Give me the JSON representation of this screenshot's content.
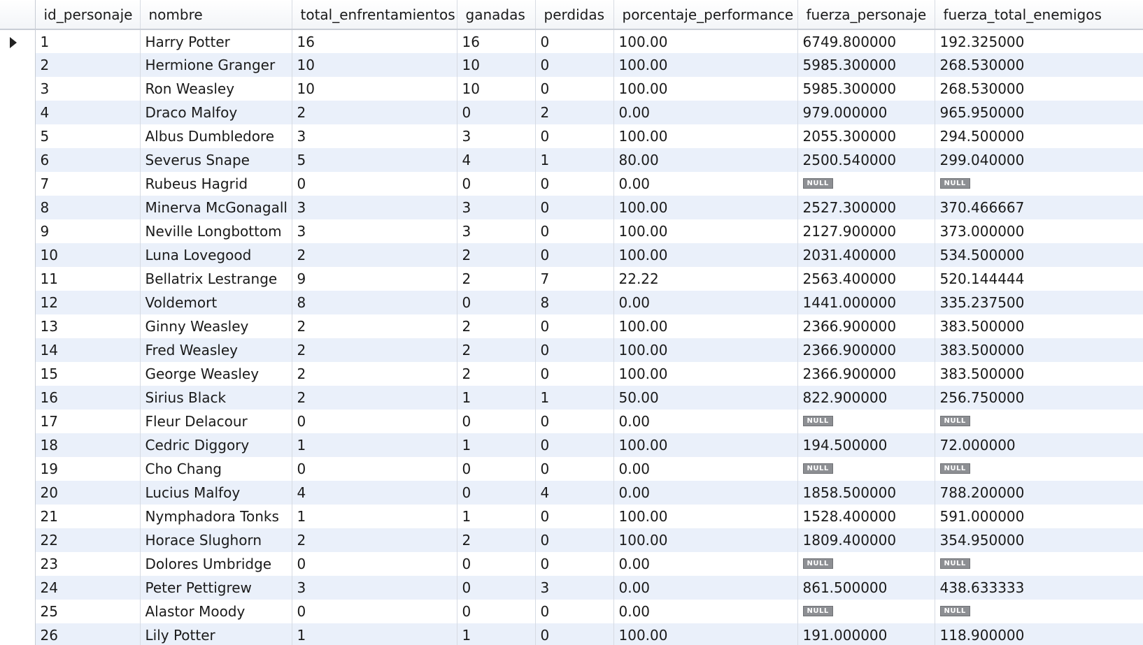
{
  "columns": [
    "id_personaje",
    "nombre",
    "total_enfrentamientos",
    "ganadas",
    "perdidas",
    "porcentaje_performance",
    "fuerza_personaje",
    "fuerza_total_enemigos"
  ],
  "current_row_marker": "row-pointer-icon",
  "null_label": "NULL",
  "rows": [
    [
      "1",
      "Harry Potter",
      "16",
      "16",
      "0",
      "100.00",
      "6749.800000",
      "192.325000"
    ],
    [
      "2",
      "Hermione Granger",
      "10",
      "10",
      "0",
      "100.00",
      "5985.300000",
      "268.530000"
    ],
    [
      "3",
      "Ron Weasley",
      "10",
      "10",
      "0",
      "100.00",
      "5985.300000",
      "268.530000"
    ],
    [
      "4",
      "Draco Malfoy",
      "2",
      "0",
      "2",
      "0.00",
      "979.000000",
      "965.950000"
    ],
    [
      "5",
      "Albus Dumbledore",
      "3",
      "3",
      "0",
      "100.00",
      "2055.300000",
      "294.500000"
    ],
    [
      "6",
      "Severus Snape",
      "5",
      "4",
      "1",
      "80.00",
      "2500.540000",
      "299.040000"
    ],
    [
      "7",
      "Rubeus Hagrid",
      "0",
      "0",
      "0",
      "0.00",
      null,
      null
    ],
    [
      "8",
      "Minerva McGonagall",
      "3",
      "3",
      "0",
      "100.00",
      "2527.300000",
      "370.466667"
    ],
    [
      "9",
      "Neville Longbottom",
      "3",
      "3",
      "0",
      "100.00",
      "2127.900000",
      "373.000000"
    ],
    [
      "10",
      "Luna Lovegood",
      "2",
      "2",
      "0",
      "100.00",
      "2031.400000",
      "534.500000"
    ],
    [
      "11",
      "Bellatrix Lestrange",
      "9",
      "2",
      "7",
      "22.22",
      "2563.400000",
      "520.144444"
    ],
    [
      "12",
      "Voldemort",
      "8",
      "0",
      "8",
      "0.00",
      "1441.000000",
      "335.237500"
    ],
    [
      "13",
      "Ginny Weasley",
      "2",
      "2",
      "0",
      "100.00",
      "2366.900000",
      "383.500000"
    ],
    [
      "14",
      "Fred Weasley",
      "2",
      "2",
      "0",
      "100.00",
      "2366.900000",
      "383.500000"
    ],
    [
      "15",
      "George Weasley",
      "2",
      "2",
      "0",
      "100.00",
      "2366.900000",
      "383.500000"
    ],
    [
      "16",
      "Sirius Black",
      "2",
      "1",
      "1",
      "50.00",
      "822.900000",
      "256.750000"
    ],
    [
      "17",
      "Fleur Delacour",
      "0",
      "0",
      "0",
      "0.00",
      null,
      null
    ],
    [
      "18",
      "Cedric Diggory",
      "1",
      "1",
      "0",
      "100.00",
      "194.500000",
      "72.000000"
    ],
    [
      "19",
      "Cho Chang",
      "0",
      "0",
      "0",
      "0.00",
      null,
      null
    ],
    [
      "20",
      "Lucius Malfoy",
      "4",
      "0",
      "4",
      "0.00",
      "1858.500000",
      "788.200000"
    ],
    [
      "21",
      "Nymphadora Tonks",
      "1",
      "1",
      "0",
      "100.00",
      "1528.400000",
      "591.000000"
    ],
    [
      "22",
      "Horace Slughorn",
      "2",
      "2",
      "0",
      "100.00",
      "1809.400000",
      "354.950000"
    ],
    [
      "23",
      "Dolores Umbridge",
      "0",
      "0",
      "0",
      "0.00",
      null,
      null
    ],
    [
      "24",
      "Peter Pettigrew",
      "3",
      "0",
      "3",
      "0.00",
      "861.500000",
      "438.633333"
    ],
    [
      "25",
      "Alastor Moody",
      "0",
      "0",
      "0",
      "0.00",
      null,
      null
    ],
    [
      "26",
      "Lily Potter",
      "1",
      "1",
      "0",
      "100.00",
      "191.000000",
      "118.900000"
    ]
  ]
}
